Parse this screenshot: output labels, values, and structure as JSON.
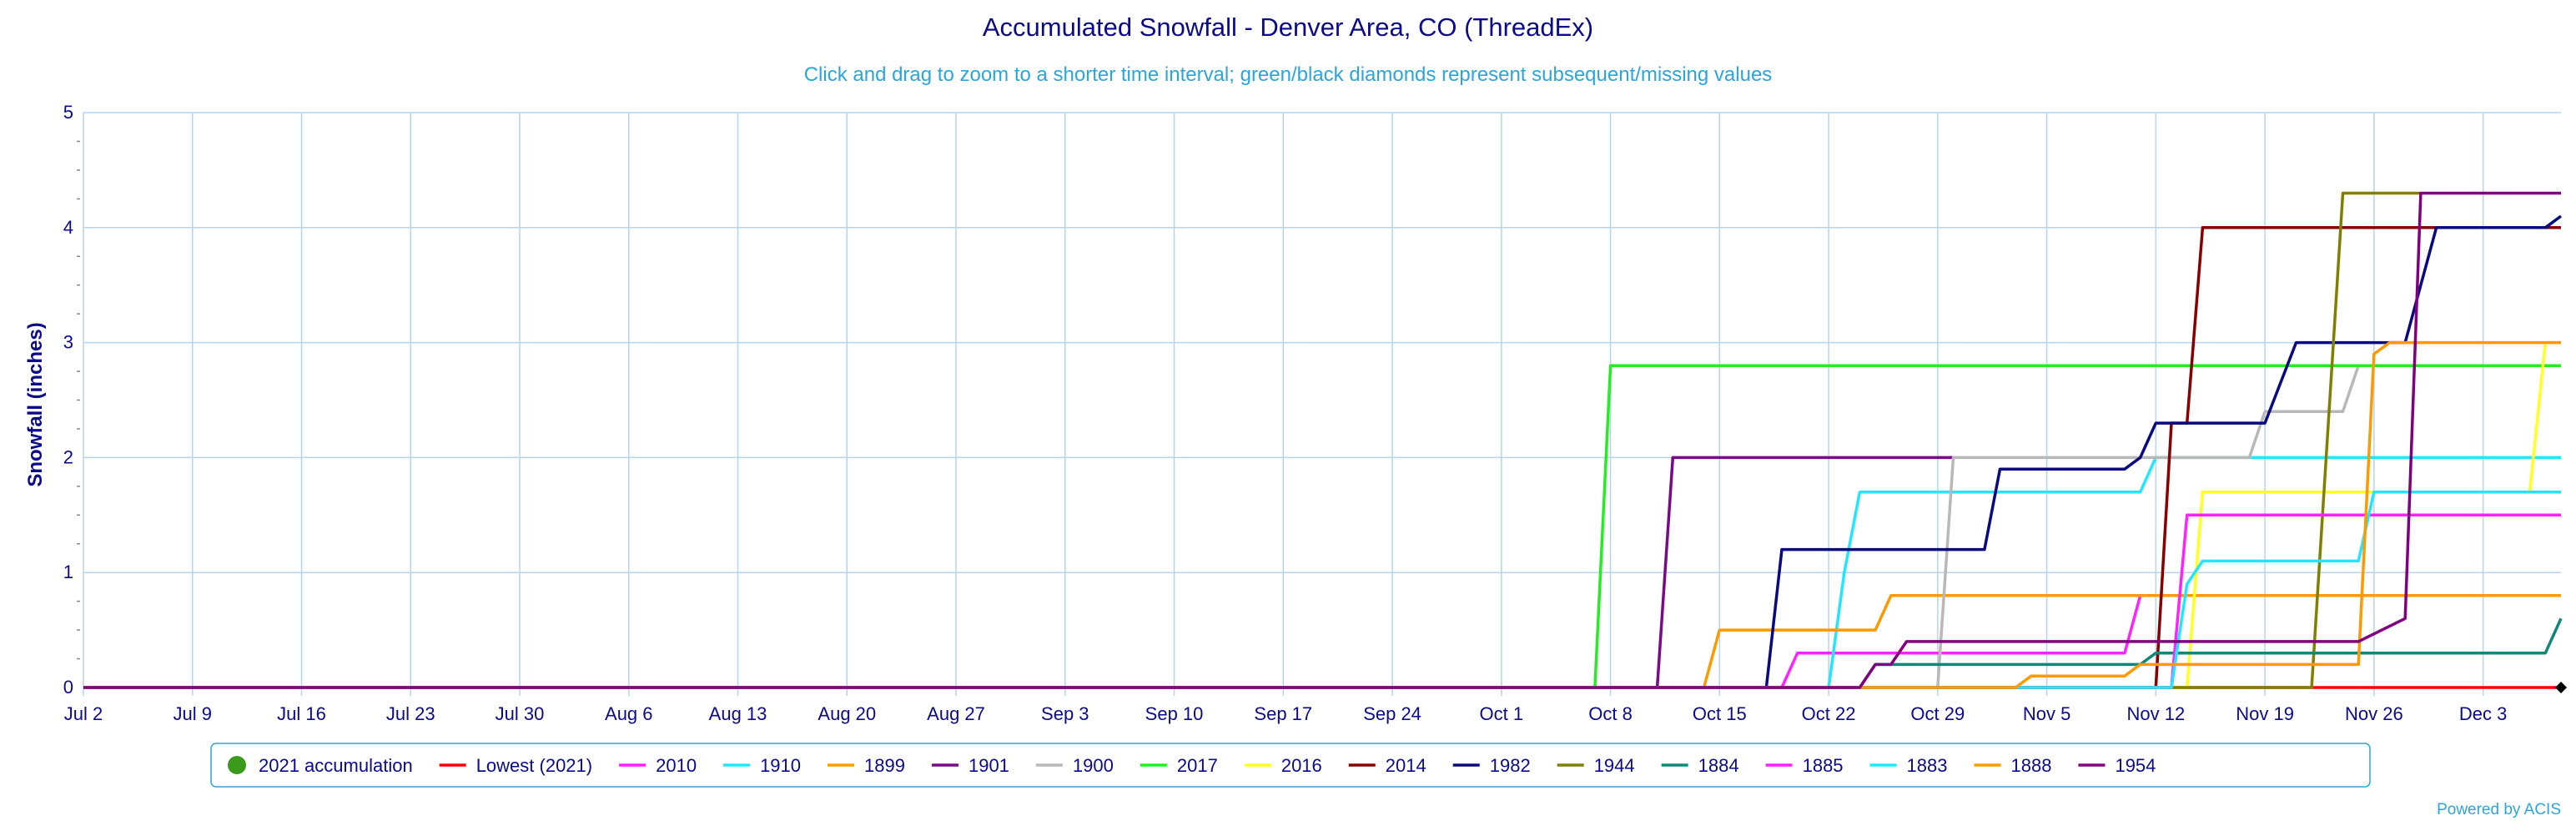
{
  "chart_data": {
    "type": "line",
    "title": "Accumulated Snowfall - Denver Area, CO (ThreadEx)",
    "subtitle": "Click and drag to zoom to a shorter time interval; green/black diamonds represent subsequent/missing values",
    "ylabel": "Snowfall (inches)",
    "xlabel": "",
    "credit": "Powered by ACIS",
    "ylim": [
      0,
      5
    ],
    "yticks": [
      "0",
      "1",
      "2",
      "3",
      "4",
      "5"
    ],
    "xlim": [
      "Jul 2",
      "Dec 8"
    ],
    "xticks": [
      "Jul 2",
      "Jul 9",
      "Jul 16",
      "Jul 23",
      "Jul 30",
      "Aug 6",
      "Aug 13",
      "Aug 20",
      "Aug 27",
      "Sep 3",
      "Sep 10",
      "Sep 17",
      "Sep 24",
      "Oct 1",
      "Oct 8",
      "Oct 15",
      "Oct 22",
      "Oct 29",
      "Nov 5",
      "Nov 12",
      "Nov 19",
      "Nov 26",
      "Dec 3"
    ],
    "grid": true,
    "legend_position": "bottom",
    "missing_marker_date": "Dec 8",
    "series": [
      {
        "name": "2021 accumulation",
        "color": "#3a9a1a",
        "marker": "circle",
        "points": []
      },
      {
        "name": "Lowest (2021)",
        "color": "#ff0000",
        "points": [
          [
            "Jul 2",
            0
          ],
          [
            "Dec 8",
            0
          ]
        ]
      },
      {
        "name": "2010",
        "color": "#ff22ff",
        "points": [
          [
            "Jul 2",
            0
          ],
          [
            "Oct 19",
            0
          ],
          [
            "Oct 20",
            0.3
          ],
          [
            "Nov 10",
            0.3
          ],
          [
            "Nov 11",
            0.8
          ],
          [
            "Dec 8",
            0.8
          ]
        ]
      },
      {
        "name": "1910",
        "color": "#22e6ff",
        "points": [
          [
            "Jul 2",
            0
          ],
          [
            "Oct 22",
            0
          ],
          [
            "Oct 23",
            1.0
          ],
          [
            "Oct 24",
            1.7
          ],
          [
            "Nov 11",
            1.7
          ],
          [
            "Nov 12",
            2.0
          ],
          [
            "Dec 8",
            2.0
          ]
        ]
      },
      {
        "name": "1899",
        "color": "#ff9900",
        "points": [
          [
            "Jul 2",
            0
          ],
          [
            "Oct 14",
            0
          ],
          [
            "Oct 15",
            0.5
          ],
          [
            "Oct 25",
            0.5
          ],
          [
            "Oct 26",
            0.8
          ],
          [
            "Dec 8",
            0.8
          ]
        ]
      },
      {
        "name": "1901",
        "color": "#7a0a8a",
        "points": [
          [
            "Jul 2",
            0
          ],
          [
            "Oct 11",
            0
          ],
          [
            "Oct 12",
            2.0
          ],
          [
            "Oct 30",
            2.0
          ]
        ]
      },
      {
        "name": "1900",
        "color": "#b8b8b8",
        "points": [
          [
            "Jul 2",
            0
          ],
          [
            "Oct 29",
            0
          ],
          [
            "Oct 30",
            2.0
          ],
          [
            "Nov 18",
            2.0
          ],
          [
            "Nov 19",
            2.4
          ],
          [
            "Nov 24",
            2.4
          ],
          [
            "Nov 25",
            2.8
          ],
          [
            "Dec 8",
            2.8
          ]
        ]
      },
      {
        "name": "2017",
        "color": "#22ee22",
        "points": [
          [
            "Jul 2",
            0
          ],
          [
            "Oct 7",
            0
          ],
          [
            "Oct 8",
            2.8
          ],
          [
            "Dec 8",
            2.8
          ]
        ]
      },
      {
        "name": "2016",
        "color": "#ffff22",
        "points": [
          [
            "Jul 2",
            0
          ],
          [
            "Nov 14",
            0
          ],
          [
            "Nov 15",
            1.7
          ],
          [
            "Dec 6",
            1.7
          ],
          [
            "Dec 7",
            3.0
          ],
          [
            "Dec 8",
            3.0
          ]
        ]
      },
      {
        "name": "2014",
        "color": "#880000",
        "points": [
          [
            "Jul 2",
            0
          ],
          [
            "Nov 12",
            0
          ],
          [
            "Nov 13",
            2.3
          ],
          [
            "Nov 14",
            2.3
          ],
          [
            "Nov 15",
            4.0
          ],
          [
            "Dec 8",
            4.0
          ]
        ]
      },
      {
        "name": "1982",
        "color": "#0a0a80",
        "points": [
          [
            "Jul 2",
            0
          ],
          [
            "Oct 18",
            0
          ],
          [
            "Oct 19",
            1.2
          ],
          [
            "Nov 1",
            1.2
          ],
          [
            "Nov 2",
            1.9
          ],
          [
            "Nov 10",
            1.9
          ],
          [
            "Nov 11",
            2.0
          ],
          [
            "Nov 12",
            2.3
          ],
          [
            "Nov 19",
            2.3
          ],
          [
            "Nov 21",
            3.0
          ],
          [
            "Nov 28",
            3.0
          ],
          [
            "Nov 30",
            4.0
          ],
          [
            "Dec 7",
            4.0
          ],
          [
            "Dec 8",
            4.1
          ]
        ]
      },
      {
        "name": "1944",
        "color": "#808000",
        "points": [
          [
            "Jul 2",
            0
          ],
          [
            "Nov 22",
            0
          ],
          [
            "Nov 24",
            4.3
          ],
          [
            "Nov 29",
            4.3
          ]
        ]
      },
      {
        "name": "1884",
        "color": "#118877",
        "points": [
          [
            "Jul 2",
            0
          ],
          [
            "Oct 24",
            0
          ],
          [
            "Oct 25",
            0.2
          ],
          [
            "Nov 11",
            0.2
          ],
          [
            "Nov 12",
            0.3
          ],
          [
            "Dec 7",
            0.3
          ],
          [
            "Dec 8",
            0.6
          ]
        ]
      },
      {
        "name": "1885",
        "color": "#ff22ff",
        "points": [
          [
            "Jul 2",
            0
          ],
          [
            "Nov 13",
            0
          ],
          [
            "Nov 14",
            1.5
          ],
          [
            "Dec 8",
            1.5
          ]
        ]
      },
      {
        "name": "1883",
        "color": "#22e6ff",
        "points": [
          [
            "Jul 2",
            0
          ],
          [
            "Nov 13",
            0
          ],
          [
            "Nov 14",
            0.9
          ],
          [
            "Nov 15",
            1.1
          ],
          [
            "Nov 25",
            1.1
          ],
          [
            "Nov 26",
            1.7
          ],
          [
            "Dec 8",
            1.7
          ]
        ]
      },
      {
        "name": "1888",
        "color": "#ff9900",
        "points": [
          [
            "Jul 2",
            0
          ],
          [
            "Nov 3",
            0
          ],
          [
            "Nov 4",
            0.1
          ],
          [
            "Nov 10",
            0.1
          ],
          [
            "Nov 11",
            0.2
          ],
          [
            "Nov 25",
            0.2
          ],
          [
            "Nov 26",
            2.9
          ],
          [
            "Nov 27",
            3.0
          ],
          [
            "Dec 8",
            3.0
          ]
        ]
      },
      {
        "name": "1954",
        "color": "#800080",
        "points": [
          [
            "Jul 2",
            0
          ],
          [
            "Oct 24",
            0
          ],
          [
            "Oct 25",
            0.2
          ],
          [
            "Oct 26",
            0.2
          ],
          [
            "Oct 27",
            0.4
          ],
          [
            "Nov 25",
            0.4
          ],
          [
            "Nov 28",
            0.6
          ],
          [
            "Nov 29",
            4.3
          ],
          [
            "Dec 8",
            4.3
          ]
        ]
      }
    ]
  }
}
